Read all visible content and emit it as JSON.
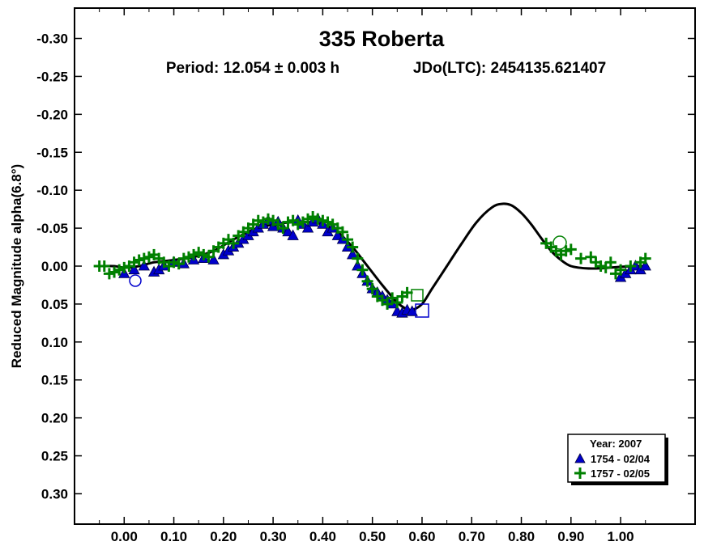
{
  "chart_data": {
    "type": "scatter",
    "title": "335 Roberta",
    "subtitle_period": "Period: 12.054 ± 0.003 h",
    "subtitle_epoch": "JDo(LTC): 2454135.621407",
    "xlabel": "",
    "ylabel": "Reduced Magnitude alpha(6.8°)",
    "xlim": [
      -0.1,
      1.15
    ],
    "ylim": [
      -0.34,
      0.34
    ],
    "y_inverted": true,
    "x_ticks": [
      "0.00",
      "0.10",
      "0.20",
      "0.30",
      "0.40",
      "0.50",
      "0.60",
      "0.70",
      "0.80",
      "0.90",
      "1.00"
    ],
    "x_tick_values": [
      0,
      0.1,
      0.2,
      0.3,
      0.4,
      0.5,
      0.6,
      0.7,
      0.8,
      0.9,
      1.0
    ],
    "y_ticks": [
      "-0.30",
      "-0.25",
      "-0.20",
      "-0.15",
      "-0.10",
      "-0.05",
      "0.00",
      "0.05",
      "0.10",
      "0.15",
      "0.20",
      "0.25",
      "0.30"
    ],
    "y_tick_values": [
      -0.3,
      -0.25,
      -0.2,
      -0.15,
      -0.1,
      -0.05,
      0,
      0.05,
      0.1,
      0.15,
      0.2,
      0.25,
      0.3
    ],
    "grid": false,
    "legend": {
      "position": "bottom-right",
      "title": "Year: 2007",
      "entries": [
        "1754 - 02/04",
        "1757 - 02/05"
      ]
    },
    "fit_curve": {
      "name": "",
      "color": "#000000",
      "x": [
        -0.05,
        -0.02,
        0.0,
        0.03,
        0.06,
        0.1,
        0.14,
        0.18,
        0.22,
        0.26,
        0.3,
        0.34,
        0.37,
        0.4,
        0.43,
        0.46,
        0.49,
        0.52,
        0.55,
        0.57,
        0.58,
        0.6,
        0.62,
        0.65,
        0.68,
        0.71,
        0.74,
        0.76,
        0.78,
        0.8,
        0.82,
        0.84,
        0.86,
        0.88,
        0.9,
        0.93,
        0.96,
        1.0,
        1.03,
        1.05
      ],
      "y": [
        0.0,
        0.0,
        0.002,
        0.0,
        -0.005,
        -0.008,
        -0.012,
        -0.02,
        -0.035,
        -0.048,
        -0.055,
        -0.058,
        -0.058,
        -0.055,
        -0.045,
        -0.025,
        0.0,
        0.025,
        0.048,
        0.057,
        0.058,
        0.05,
        0.03,
        0.0,
        -0.03,
        -0.058,
        -0.077,
        -0.082,
        -0.08,
        -0.07,
        -0.055,
        -0.037,
        -0.02,
        -0.008,
        0.0,
        0.003,
        0.003,
        0.001,
        0.0,
        0.0
      ]
    },
    "series": [
      {
        "name": "1754 - 02/04",
        "marker": "triangle",
        "color": "#0000cc",
        "x": [
          0.0,
          0.02,
          0.04,
          0.06,
          0.07,
          0.08,
          0.1,
          0.12,
          0.14,
          0.16,
          0.18,
          0.2,
          0.21,
          0.22,
          0.23,
          0.24,
          0.25,
          0.26,
          0.27,
          0.28,
          0.29,
          0.3,
          0.31,
          0.32,
          0.33,
          0.34,
          0.35,
          0.36,
          0.37,
          0.38,
          0.39,
          0.4,
          0.41,
          0.42,
          0.43,
          0.44,
          0.45,
          0.46,
          0.47,
          0.48,
          0.49,
          0.5,
          0.51,
          0.52,
          0.53,
          0.54,
          0.55,
          0.56,
          0.57,
          0.58,
          1.0,
          1.01,
          1.02,
          1.03,
          1.04,
          1.05
        ],
        "y": [
          0.01,
          0.005,
          0.0,
          0.008,
          0.005,
          0.0,
          -0.005,
          -0.003,
          -0.008,
          -0.01,
          -0.008,
          -0.015,
          -0.02,
          -0.025,
          -0.03,
          -0.035,
          -0.04,
          -0.045,
          -0.05,
          -0.055,
          -0.06,
          -0.052,
          -0.058,
          -0.05,
          -0.045,
          -0.04,
          -0.06,
          -0.055,
          -0.05,
          -0.058,
          -0.062,
          -0.055,
          -0.045,
          -0.05,
          -0.04,
          -0.035,
          -0.025,
          -0.015,
          0.0,
          0.01,
          0.02,
          0.03,
          0.035,
          0.04,
          0.045,
          0.05,
          0.06,
          0.062,
          0.058,
          0.06,
          0.015,
          0.01,
          0.005,
          0.0,
          0.005,
          0.0
        ]
      },
      {
        "name": "1757 - 02/05",
        "marker": "plus",
        "color": "#008000",
        "x": [
          -0.05,
          -0.04,
          -0.03,
          -0.02,
          -0.01,
          0.0,
          0.01,
          0.02,
          0.03,
          0.04,
          0.05,
          0.06,
          0.07,
          0.08,
          0.09,
          0.1,
          0.11,
          0.12,
          0.13,
          0.14,
          0.15,
          0.16,
          0.17,
          0.18,
          0.19,
          0.2,
          0.21,
          0.22,
          0.23,
          0.24,
          0.25,
          0.26,
          0.27,
          0.28,
          0.29,
          0.3,
          0.31,
          0.32,
          0.33,
          0.34,
          0.35,
          0.36,
          0.37,
          0.38,
          0.39,
          0.4,
          0.41,
          0.42,
          0.43,
          0.44,
          0.45,
          0.46,
          0.47,
          0.48,
          0.49,
          0.5,
          0.51,
          0.52,
          0.53,
          0.54,
          0.55,
          0.56,
          0.57,
          0.85,
          0.86,
          0.87,
          0.88,
          0.89,
          0.9,
          0.92,
          0.94,
          0.95,
          0.96,
          0.97,
          0.98,
          0.99,
          1.0,
          1.02,
          1.04,
          1.05
        ],
        "y": [
          0.0,
          0.0,
          0.01,
          0.008,
          0.005,
          0.002,
          0.0,
          -0.005,
          -0.008,
          -0.01,
          -0.012,
          -0.015,
          -0.01,
          -0.005,
          0.0,
          -0.005,
          -0.003,
          -0.01,
          -0.012,
          -0.015,
          -0.018,
          -0.015,
          -0.012,
          -0.02,
          -0.025,
          -0.03,
          -0.035,
          -0.03,
          -0.04,
          -0.045,
          -0.05,
          -0.055,
          -0.06,
          -0.058,
          -0.062,
          -0.06,
          -0.055,
          -0.05,
          -0.058,
          -0.06,
          -0.055,
          -0.058,
          -0.062,
          -0.065,
          -0.062,
          -0.06,
          -0.058,
          -0.055,
          -0.05,
          -0.045,
          -0.035,
          -0.025,
          -0.01,
          0.005,
          0.02,
          0.03,
          0.04,
          0.045,
          0.05,
          0.042,
          0.048,
          0.04,
          0.035,
          -0.03,
          -0.025,
          -0.02,
          -0.015,
          -0.02,
          -0.022,
          -0.01,
          -0.012,
          -0.005,
          0.0,
          0.002,
          -0.005,
          0.01,
          0.005,
          0.0,
          -0.005,
          -0.01
        ]
      }
    ]
  }
}
